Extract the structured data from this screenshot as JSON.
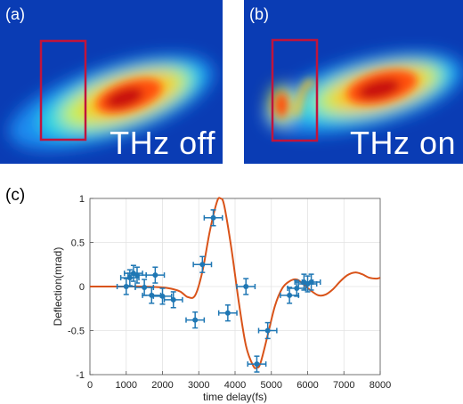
{
  "panels": [
    {
      "label": "(a)",
      "caption": "THz off"
    },
    {
      "label": "(b)",
      "caption": "THz on"
    }
  ],
  "colors": {
    "background_blue": "#0a3cb4",
    "box_outline": "#c0143c",
    "data_points": "#1f77b4",
    "fit_curve": "#d95319",
    "grid": "#e3e3e3"
  },
  "chart_data": {
    "panel_label": "(c)",
    "type": "scatter",
    "xlabel": "time delay(fs)",
    "ylabel": "Deflection(mrad)",
    "xlim": [
      0,
      8000
    ],
    "ylim": [
      -1,
      1
    ],
    "xticks": [
      0,
      1000,
      2000,
      3000,
      4000,
      5000,
      6000,
      7000,
      8000
    ],
    "yticks": [
      1,
      0.5,
      0,
      -0.5,
      -1
    ],
    "ytick_labels": [
      "1",
      "0.5",
      "0",
      "-0.5",
      "-1"
    ],
    "grid": true,
    "series": [
      {
        "type": "errorbar",
        "points": [
          {
            "x": 1000,
            "y": 0.0,
            "xerr": 250,
            "yerr": 0.09
          },
          {
            "x": 1100,
            "y": 0.1,
            "xerr": 250,
            "yerr": 0.09
          },
          {
            "x": 1200,
            "y": 0.15,
            "xerr": 250,
            "yerr": 0.09
          },
          {
            "x": 1300,
            "y": 0.13,
            "xerr": 250,
            "yerr": 0.09
          },
          {
            "x": 1500,
            "y": -0.01,
            "xerr": 250,
            "yerr": 0.09
          },
          {
            "x": 1700,
            "y": -0.1,
            "xerr": 250,
            "yerr": 0.09
          },
          {
            "x": 1800,
            "y": 0.13,
            "xerr": 250,
            "yerr": 0.09
          },
          {
            "x": 2000,
            "y": -0.11,
            "xerr": 250,
            "yerr": 0.09
          },
          {
            "x": 2300,
            "y": -0.15,
            "xerr": 250,
            "yerr": 0.09
          },
          {
            "x": 2900,
            "y": -0.38,
            "xerr": 250,
            "yerr": 0.09
          },
          {
            "x": 3100,
            "y": 0.25,
            "xerr": 250,
            "yerr": 0.09
          },
          {
            "x": 3400,
            "y": 0.78,
            "xerr": 250,
            "yerr": 0.09
          },
          {
            "x": 3800,
            "y": -0.3,
            "xerr": 250,
            "yerr": 0.09
          },
          {
            "x": 4300,
            "y": 0.0,
            "xerr": 250,
            "yerr": 0.09
          },
          {
            "x": 4600,
            "y": -0.88,
            "xerr": 250,
            "yerr": 0.09
          },
          {
            "x": 4900,
            "y": -0.5,
            "xerr": 250,
            "yerr": 0.09
          },
          {
            "x": 5500,
            "y": -0.1,
            "xerr": 250,
            "yerr": 0.09
          },
          {
            "x": 5700,
            "y": -0.02,
            "xerr": 250,
            "yerr": 0.09
          },
          {
            "x": 5900,
            "y": 0.05,
            "xerr": 250,
            "yerr": 0.09
          },
          {
            "x": 6000,
            "y": 0.03,
            "xerr": 250,
            "yerr": 0.09
          },
          {
            "x": 6100,
            "y": 0.05,
            "xerr": 250,
            "yerr": 0.09
          }
        ]
      },
      {
        "type": "line",
        "x": [
          0,
          500,
          1000,
          1500,
          2000,
          2300,
          2500,
          2700,
          2900,
          3100,
          3300,
          3500,
          3600,
          3700,
          3900,
          4100,
          4300,
          4500,
          4600,
          4700,
          4900,
          5100,
          5300,
          5500,
          5700,
          5900,
          6100,
          6300,
          6500,
          6700,
          6900,
          7100,
          7300,
          7500,
          7700,
          7900,
          8000
        ],
        "y": [
          0,
          0,
          0,
          0,
          -0.01,
          -0.03,
          -0.06,
          -0.12,
          -0.1,
          0.17,
          0.62,
          0.96,
          1.0,
          0.92,
          0.43,
          -0.17,
          -0.67,
          -0.9,
          -0.92,
          -0.87,
          -0.55,
          -0.22,
          -0.02,
          0.06,
          0.08,
          0.02,
          -0.05,
          -0.1,
          -0.09,
          -0.03,
          0.06,
          0.13,
          0.16,
          0.14,
          0.1,
          0.09,
          0.1
        ]
      }
    ]
  }
}
